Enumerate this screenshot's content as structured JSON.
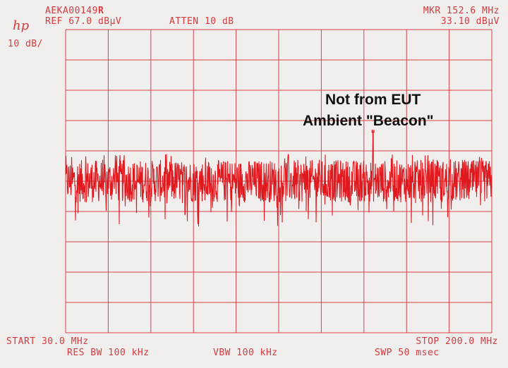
{
  "header": {
    "logo": "hp",
    "id": "AEKA00149",
    "id_suffix": "R",
    "ref": "REF 67.0 dBµV",
    "atten": "ATTEN 10 dB",
    "scale": "10 dB/",
    "marker_freq": "MKR 152.6 MHz",
    "marker_level": "33.10 dBµV"
  },
  "footer": {
    "start": "START 30.0 MHz",
    "stop": "STOP 200.0 MHz",
    "res_bw": "RES BW 100 kHz",
    "vbw": "VBW 100 kHz",
    "sweep": "SWP 50 msec"
  },
  "annotation": {
    "line1": "Not from EUT",
    "line2": "Ambient \"Beacon\""
  },
  "chart_data": {
    "type": "line",
    "xlabel": "",
    "ylabel": "",
    "xlim": [
      30,
      200
    ],
    "ylim": [
      -33,
      67
    ],
    "x_unit": "MHz",
    "y_unit": "dBµV",
    "grid": true,
    "x_divisions": 10,
    "y_divisions": 10,
    "series": [
      {
        "description_values": "noise floor",
        "y_range_typical": [
          10,
          24
        ],
        "y_min_dips": 2,
        "y_max_peaks": 26
      }
    ],
    "marker": {
      "x": 152.6,
      "y": 33.1
    },
    "color": "#e0191f"
  }
}
